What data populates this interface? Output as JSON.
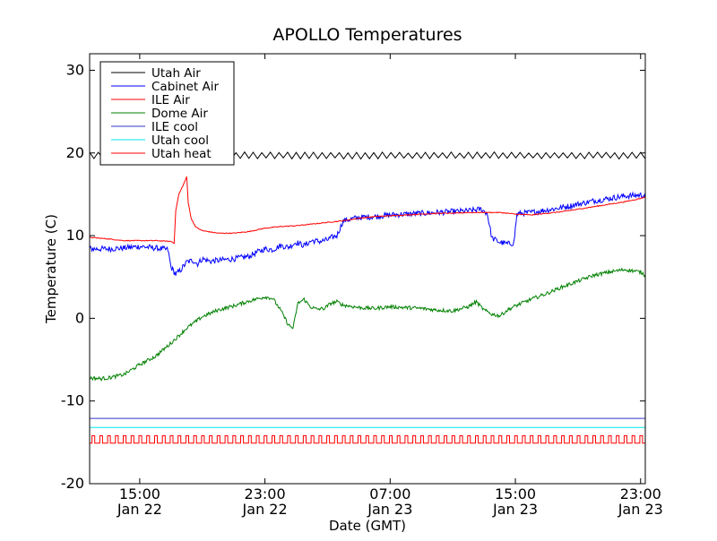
{
  "chart_data": {
    "type": "line",
    "title": "APOLLO Temperatures",
    "xlabel": "Date (GMT)",
    "ylabel": "Temperature (C)",
    "xlim": [
      11.8,
      47.3
    ],
    "ylim": [
      -20,
      32
    ],
    "grid": false,
    "legend_position": "upper-left",
    "x_ticks": [
      {
        "value": 15,
        "time": "15:00",
        "date": "Jan 22"
      },
      {
        "value": 23,
        "time": "23:00",
        "date": "Jan 22"
      },
      {
        "value": 31,
        "time": "07:00",
        "date": "Jan 23"
      },
      {
        "value": 39,
        "time": "15:00",
        "date": "Jan 23"
      },
      {
        "value": 47,
        "time": "23:00",
        "date": "Jan 23"
      }
    ],
    "y_ticks": [
      {
        "value": 30,
        "label": "30"
      },
      {
        "value": 20,
        "label": "20"
      },
      {
        "value": 10,
        "label": "10"
      },
      {
        "value": 0,
        "label": "0"
      },
      {
        "value": -10,
        "label": "-10"
      },
      {
        "value": -20,
        "label": "-20"
      }
    ],
    "series": [
      {
        "name": "Utah Air",
        "color": "#000000",
        "kind": "zigzag",
        "base": 19.7,
        "amplitude": 0.35,
        "period": 0.55
      },
      {
        "name": "Cabinet Air",
        "color": "#0000ff",
        "x": [
          11.8,
          13.0,
          14.0,
          15.0,
          16.0,
          16.8,
          17.0,
          17.3,
          17.6,
          18.0,
          18.4,
          18.7,
          19.0,
          19.5,
          20.0,
          21.0,
          22.0,
          22.5,
          23.0,
          23.5,
          24.0,
          24.5,
          25.0,
          25.5,
          26.0,
          26.5,
          27.0,
          27.3,
          27.6,
          28.0,
          29.0,
          30.0,
          31.0,
          32.0,
          33.0,
          34.0,
          35.0,
          36.0,
          36.8,
          37.2,
          37.5,
          38.0,
          38.5,
          38.9,
          39.1,
          39.4,
          40.0,
          41.0,
          42.0,
          43.0,
          44.0,
          45.0,
          46.0,
          47.0,
          47.3
        ],
        "y": [
          8.4,
          8.4,
          8.5,
          8.7,
          8.5,
          8.3,
          6.2,
          5.3,
          5.8,
          6.8,
          7.0,
          6.6,
          7.2,
          6.9,
          7.0,
          7.2,
          7.5,
          8.0,
          8.4,
          8.3,
          8.8,
          8.6,
          9.2,
          8.8,
          9.4,
          9.3,
          9.5,
          9.8,
          10.0,
          11.8,
          12.2,
          12.3,
          12.5,
          12.6,
          12.7,
          12.8,
          12.9,
          13.0,
          13.2,
          12.7,
          9.7,
          9.2,
          9.0,
          9.1,
          12.6,
          12.7,
          12.8,
          13.1,
          13.4,
          13.8,
          14.2,
          14.5,
          14.8,
          14.9,
          14.9
        ],
        "noise": 0.35
      },
      {
        "name": "ILE Air",
        "color": "#ff0000",
        "x": [
          11.8,
          13.0,
          14.0,
          15.0,
          16.0,
          17.0,
          17.2,
          17.3,
          17.5,
          17.8,
          18.0,
          18.1,
          18.3,
          18.6,
          19.0,
          20.0,
          21.0,
          22.0,
          23.0,
          24.0,
          25.0,
          26.0,
          27.0,
          28.0,
          29.0,
          30.0,
          31.0,
          32.0,
          33.0,
          34.0,
          35.0,
          36.0,
          37.0,
          38.0,
          39.0,
          40.0,
          41.0,
          42.0,
          43.0,
          44.0,
          45.0,
          46.0,
          47.0,
          47.3
        ],
        "y": [
          9.8,
          9.6,
          9.4,
          9.4,
          9.4,
          9.3,
          9.1,
          13.0,
          15.0,
          16.2,
          17.1,
          14.0,
          12.0,
          11.0,
          10.6,
          10.3,
          10.3,
          10.5,
          10.9,
          11.1,
          11.2,
          11.4,
          11.6,
          11.8,
          12.1,
          12.3,
          12.4,
          12.5,
          12.6,
          12.7,
          12.7,
          12.8,
          12.8,
          12.8,
          12.6,
          12.5,
          12.7,
          12.9,
          13.2,
          13.5,
          13.8,
          14.1,
          14.5,
          14.7
        ],
        "noise": 0.05
      },
      {
        "name": "Dome Air",
        "color": "#008000",
        "x": [
          11.8,
          12.5,
          13.0,
          14.0,
          15.0,
          16.0,
          17.0,
          18.0,
          19.0,
          20.0,
          21.0,
          22.0,
          23.0,
          23.5,
          24.0,
          24.5,
          24.8,
          25.1,
          25.5,
          25.9,
          26.3,
          26.8,
          27.2,
          27.6,
          28.0,
          29.0,
          30.0,
          31.0,
          32.0,
          33.0,
          34.0,
          35.0,
          36.0,
          36.5,
          37.0,
          37.5,
          38.0,
          38.5,
          39.0,
          40.0,
          41.0,
          42.0,
          43.0,
          44.0,
          45.0,
          46.0,
          47.0,
          47.3
        ],
        "y": [
          -7.2,
          -7.3,
          -7.2,
          -6.8,
          -5.6,
          -4.6,
          -3.0,
          -1.2,
          0.2,
          1.0,
          1.5,
          2.1,
          2.6,
          2.4,
          1.0,
          -0.8,
          -1.2,
          1.8,
          2.3,
          1.4,
          1.1,
          1.2,
          1.8,
          2.0,
          1.6,
          1.3,
          1.2,
          1.4,
          1.3,
          1.2,
          1.0,
          0.9,
          1.4,
          2.0,
          1.0,
          0.5,
          0.3,
          1.0,
          1.5,
          2.3,
          3.0,
          3.8,
          4.5,
          5.2,
          5.6,
          5.9,
          5.6,
          5.2
        ],
        "noise": 0.22
      },
      {
        "name": "ILE cool",
        "color": "#3333cc",
        "kind": "constant",
        "value": -12.1
      },
      {
        "name": "Utah cool",
        "color": "#00e5ee",
        "kind": "constant",
        "value": -13.2
      },
      {
        "name": "Utah heat",
        "color": "#ff0000",
        "kind": "square",
        "high": -14.2,
        "low": -15.1,
        "period": 0.5
      }
    ]
  }
}
